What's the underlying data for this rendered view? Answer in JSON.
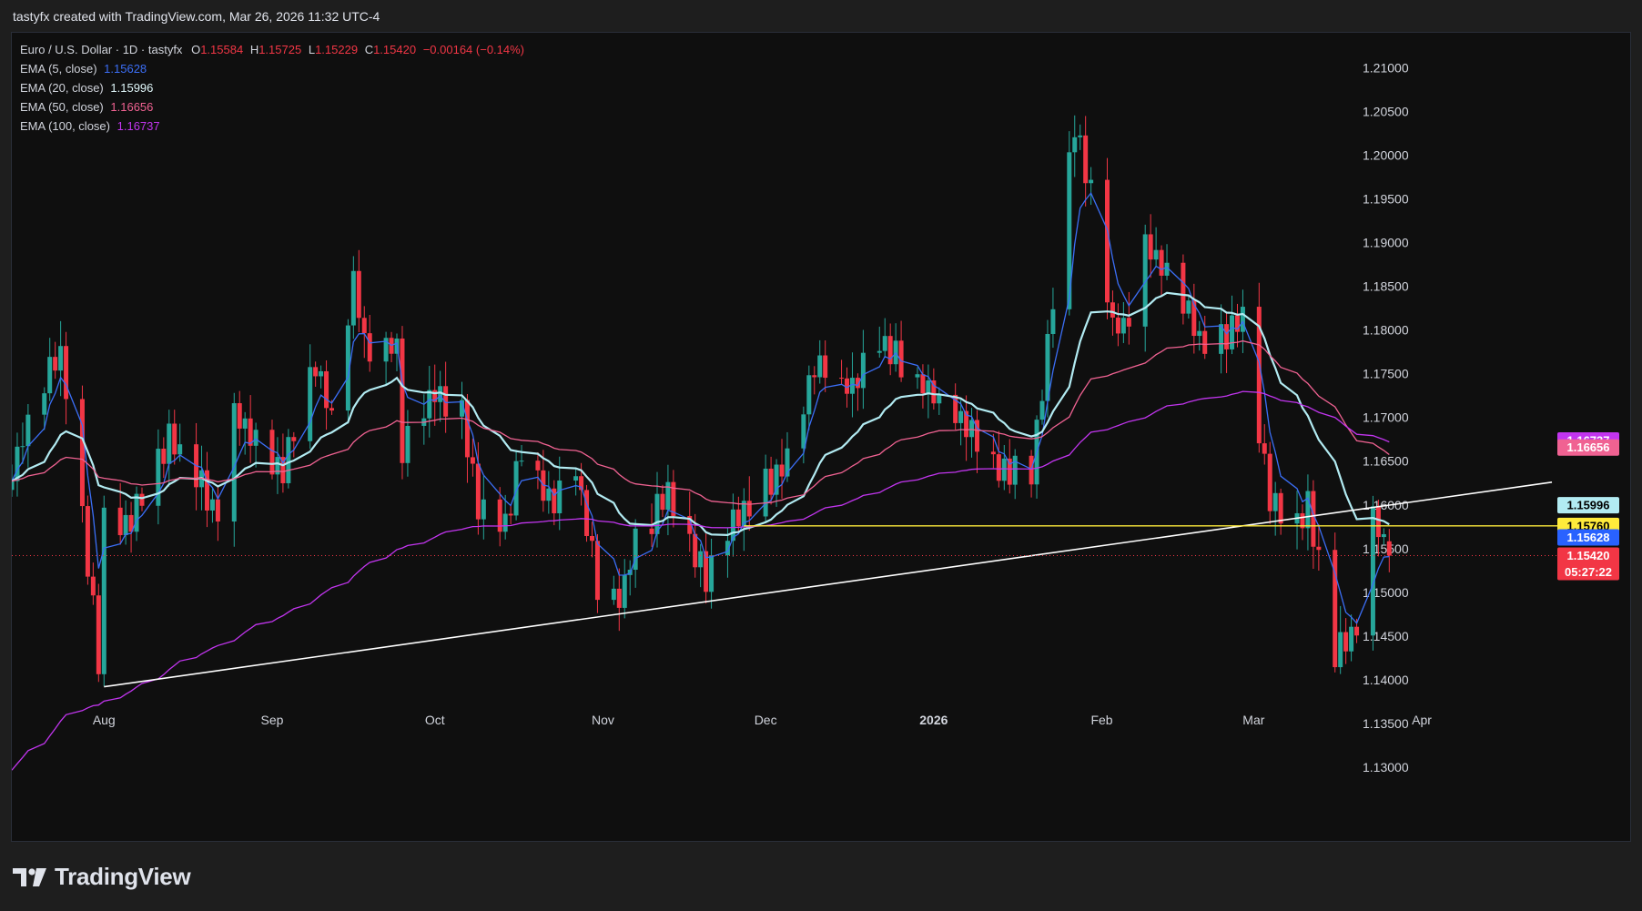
{
  "header": {
    "caption": "tastyfx created with TradingView.com, Mar 26, 2026 11:32 UTC-4"
  },
  "legend": {
    "symbol": "Euro / U.S. Dollar · 1D · tastyfx",
    "ohlc": {
      "open_label": "O",
      "open": "1.15584",
      "high_label": "H",
      "high": "1.15725",
      "low_label": "L",
      "low": "1.15229",
      "close_label": "C",
      "close": "1.15420",
      "change": "−0.00164 (−0.14%)"
    },
    "indicators": [
      {
        "label": "EMA (5, close)",
        "value": "1.15628",
        "color": "#3b6ef5"
      },
      {
        "label": "EMA (20, close)",
        "value": "1.15996",
        "color": "#b2ebf2"
      },
      {
        "label": "EMA (50, close)",
        "value": "1.16656",
        "color": "#f06292"
      },
      {
        "label": "EMA (100, close)",
        "value": "1.16737",
        "color": "#c235ef"
      }
    ]
  },
  "logo": {
    "text": "TradingView"
  },
  "chart_data": {
    "type": "candlestick",
    "symbol": "EUR/USD",
    "timeframe": "1D",
    "y_ticks": [
      "1.13000",
      "1.13500",
      "1.14000",
      "1.14500",
      "1.15000",
      "1.15500",
      "1.16000",
      "1.16500",
      "1.17000",
      "1.17500",
      "1.18000",
      "1.18500",
      "1.19000",
      "1.19500",
      "1.20000",
      "1.20500",
      "1.21000"
    ],
    "x_ticks": [
      "Aug",
      "Sep",
      "Oct",
      "Nov",
      "Dec",
      "2026",
      "Feb",
      "Mar",
      "Apr"
    ],
    "x_tick_dates": [
      "2025-08-01",
      "2025-09-01",
      "2025-10-01",
      "2025-11-01",
      "2025-12-01",
      "2026-01-01",
      "2026-02-01",
      "2026-03-01",
      "2026-04-01"
    ],
    "x_range": [
      "2025-07-15",
      "2026-04-26"
    ],
    "ylim": [
      1.125,
      1.214
    ],
    "grid": false,
    "colors": {
      "up": "#26a69a",
      "down": "#f23645",
      "background": "#0f0f0f"
    },
    "anchors": [
      {
        "date": "2025-07-15",
        "close": 1.164
      },
      {
        "date": "2025-07-22",
        "close": 1.176
      },
      {
        "date": "2025-07-24",
        "close": 1.1775
      },
      {
        "date": "2025-07-28",
        "close": 1.159
      },
      {
        "date": "2025-07-31",
        "close": 1.142
      },
      {
        "date": "2025-08-01",
        "close": 1.158
      },
      {
        "date": "2025-08-05",
        "close": 1.157
      },
      {
        "date": "2025-08-13",
        "close": 1.168
      },
      {
        "date": "2025-08-22",
        "close": 1.159
      },
      {
        "date": "2025-08-25",
        "close": 1.17
      },
      {
        "date": "2025-09-03",
        "close": 1.164
      },
      {
        "date": "2025-09-09",
        "close": 1.176
      },
      {
        "date": "2025-09-12",
        "close": 1.17
      },
      {
        "date": "2025-09-16",
        "close": 1.186
      },
      {
        "date": "2025-09-18",
        "close": 1.178
      },
      {
        "date": "2025-09-24",
        "close": 1.178
      },
      {
        "date": "2025-09-25",
        "close": 1.166
      },
      {
        "date": "2025-10-01",
        "close": 1.173
      },
      {
        "date": "2025-10-06",
        "close": 1.17
      },
      {
        "date": "2025-10-09",
        "close": 1.16
      },
      {
        "date": "2025-10-14",
        "close": 1.157
      },
      {
        "date": "2025-10-17",
        "close": 1.167
      },
      {
        "date": "2025-10-22",
        "close": 1.16
      },
      {
        "date": "2025-10-27",
        "close": 1.164
      },
      {
        "date": "2025-10-31",
        "close": 1.151
      },
      {
        "date": "2025-11-04",
        "close": 1.149
      },
      {
        "date": "2025-11-07",
        "close": 1.156
      },
      {
        "date": "2025-11-13",
        "close": 1.161
      },
      {
        "date": "2025-11-20",
        "close": 1.152
      },
      {
        "date": "2025-11-26",
        "close": 1.159
      },
      {
        "date": "2025-12-05",
        "close": 1.165
      },
      {
        "date": "2025-12-10",
        "close": 1.176
      },
      {
        "date": "2025-12-17",
        "close": 1.173
      },
      {
        "date": "2025-12-22",
        "close": 1.179
      },
      {
        "date": "2025-12-29",
        "close": 1.174
      },
      {
        "date": "2026-01-07",
        "close": 1.169
      },
      {
        "date": "2026-01-13",
        "close": 1.164
      },
      {
        "date": "2026-01-19",
        "close": 1.164
      },
      {
        "date": "2026-01-23",
        "close": 1.183
      },
      {
        "date": "2026-01-27",
        "close": 1.204
      },
      {
        "date": "2026-01-30",
        "close": 1.196
      },
      {
        "date": "2026-02-03",
        "close": 1.18
      },
      {
        "date": "2026-02-06",
        "close": 1.181
      },
      {
        "date": "2026-02-09",
        "close": 1.19
      },
      {
        "date": "2026-02-12",
        "close": 1.187
      },
      {
        "date": "2026-02-20",
        "close": 1.178
      },
      {
        "date": "2026-02-27",
        "close": 1.181
      },
      {
        "date": "2026-03-04",
        "close": 1.161
      },
      {
        "date": "2026-03-09",
        "close": 1.158
      },
      {
        "date": "2026-03-11",
        "close": 1.16
      },
      {
        "date": "2026-03-16",
        "close": 1.143
      },
      {
        "date": "2026-03-20",
        "close": 1.146
      },
      {
        "date": "2026-03-23",
        "close": 1.159
      },
      {
        "date": "2026-03-25",
        "close": 1.1558
      },
      {
        "date": "2026-03-26",
        "close": 1.1542
      }
    ],
    "last_candle": {
      "date": "2026-03-26",
      "open": 1.15584,
      "high": 1.15725,
      "low": 1.15229,
      "close": 1.1542
    },
    "ema_series": [
      {
        "name": "EMA (5, close)",
        "period": 5,
        "color": "#3b6ef5",
        "last": 1.15628
      },
      {
        "name": "EMA (20, close)",
        "period": 20,
        "color": "#b2ebf2",
        "last": 1.15996
      },
      {
        "name": "EMA (50, close)",
        "period": 50,
        "color": "#f06292",
        "last": 1.16656
      },
      {
        "name": "EMA (100, close)",
        "period": 100,
        "color": "#c235ef",
        "last": 1.16737
      }
    ],
    "ema100_seed": 1.129,
    "trendline": {
      "from": {
        "date": "2025-08-01",
        "value": 1.1392
      },
      "to": {
        "date": "2026-04-25",
        "value": 1.1626
      },
      "color": "#ffffff"
    },
    "horizontal_line": {
      "from_date": "2025-11-27",
      "value": 1.1576,
      "color": "#ffeb3b"
    },
    "price_badges": [
      {
        "value": 1.16737,
        "label": "1.16737",
        "bg": "#c235ef",
        "fg": "#ffffff"
      },
      {
        "value": 1.16656,
        "label": "1.16656",
        "bg": "#f06292",
        "fg": "#ffffff"
      },
      {
        "value": 1.15996,
        "label": "1.15996",
        "bg": "#b2ebf2",
        "fg": "#000000"
      },
      {
        "value": 1.1576,
        "label": "1.15760",
        "bg": "#ffeb3b",
        "fg": "#000000"
      },
      {
        "value": 1.15628,
        "label": "1.15628",
        "bg": "#2962ff",
        "fg": "#ffffff"
      },
      {
        "value": 1.1542,
        "label": "1.15420",
        "sub": "05:27:22",
        "bg": "#f23645",
        "fg": "#ffffff"
      }
    ]
  }
}
